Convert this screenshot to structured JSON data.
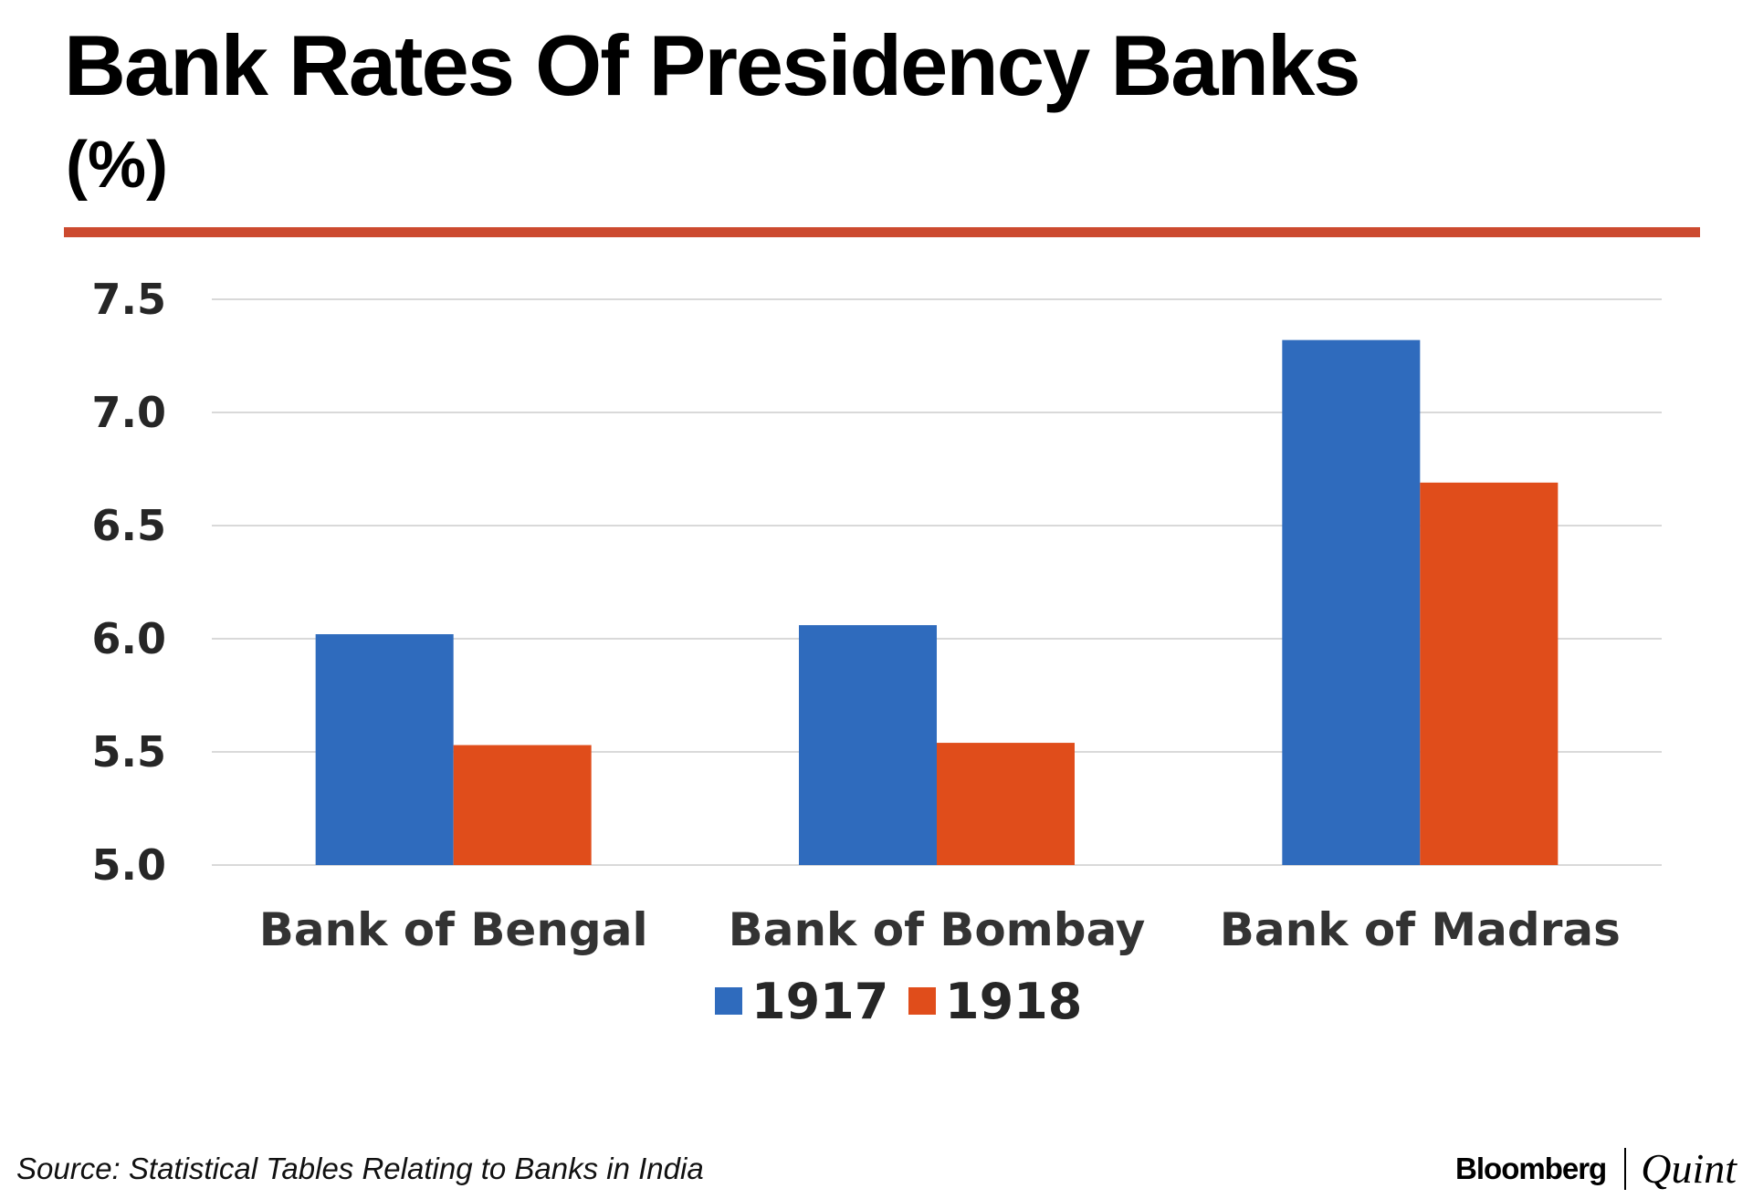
{
  "header": {
    "title": "Bank Rates Of Presidency Banks",
    "subtitle": "(%)"
  },
  "footer": {
    "source": "Source: Statistical Tables Relating to Banks in India",
    "brand_primary": "Bloomberg",
    "brand_secondary": "Quint"
  },
  "colors": {
    "accent_rule": "#cc4a2f",
    "series_1917": "#2f6bbd",
    "series_1918": "#e04d1b",
    "gridline": "#d9d9d9"
  },
  "chart_data": {
    "type": "bar",
    "title": "Bank Rates Of Presidency Banks",
    "subtitle": "(%)",
    "xlabel": "",
    "ylabel": "",
    "categories": [
      "Bank of Bengal",
      "Bank of Bombay",
      "Bank of Madras"
    ],
    "series": [
      {
        "name": "1917",
        "values": [
          6.02,
          6.06,
          7.32
        ]
      },
      {
        "name": "1918",
        "values": [
          5.53,
          5.54,
          6.69
        ]
      }
    ],
    "ylim": [
      5.0,
      7.5
    ],
    "yticks": [
      "5.0",
      "5.5",
      "6.0",
      "6.5",
      "7.0",
      "7.5"
    ],
    "grid": true,
    "legend": "bottom-center"
  }
}
